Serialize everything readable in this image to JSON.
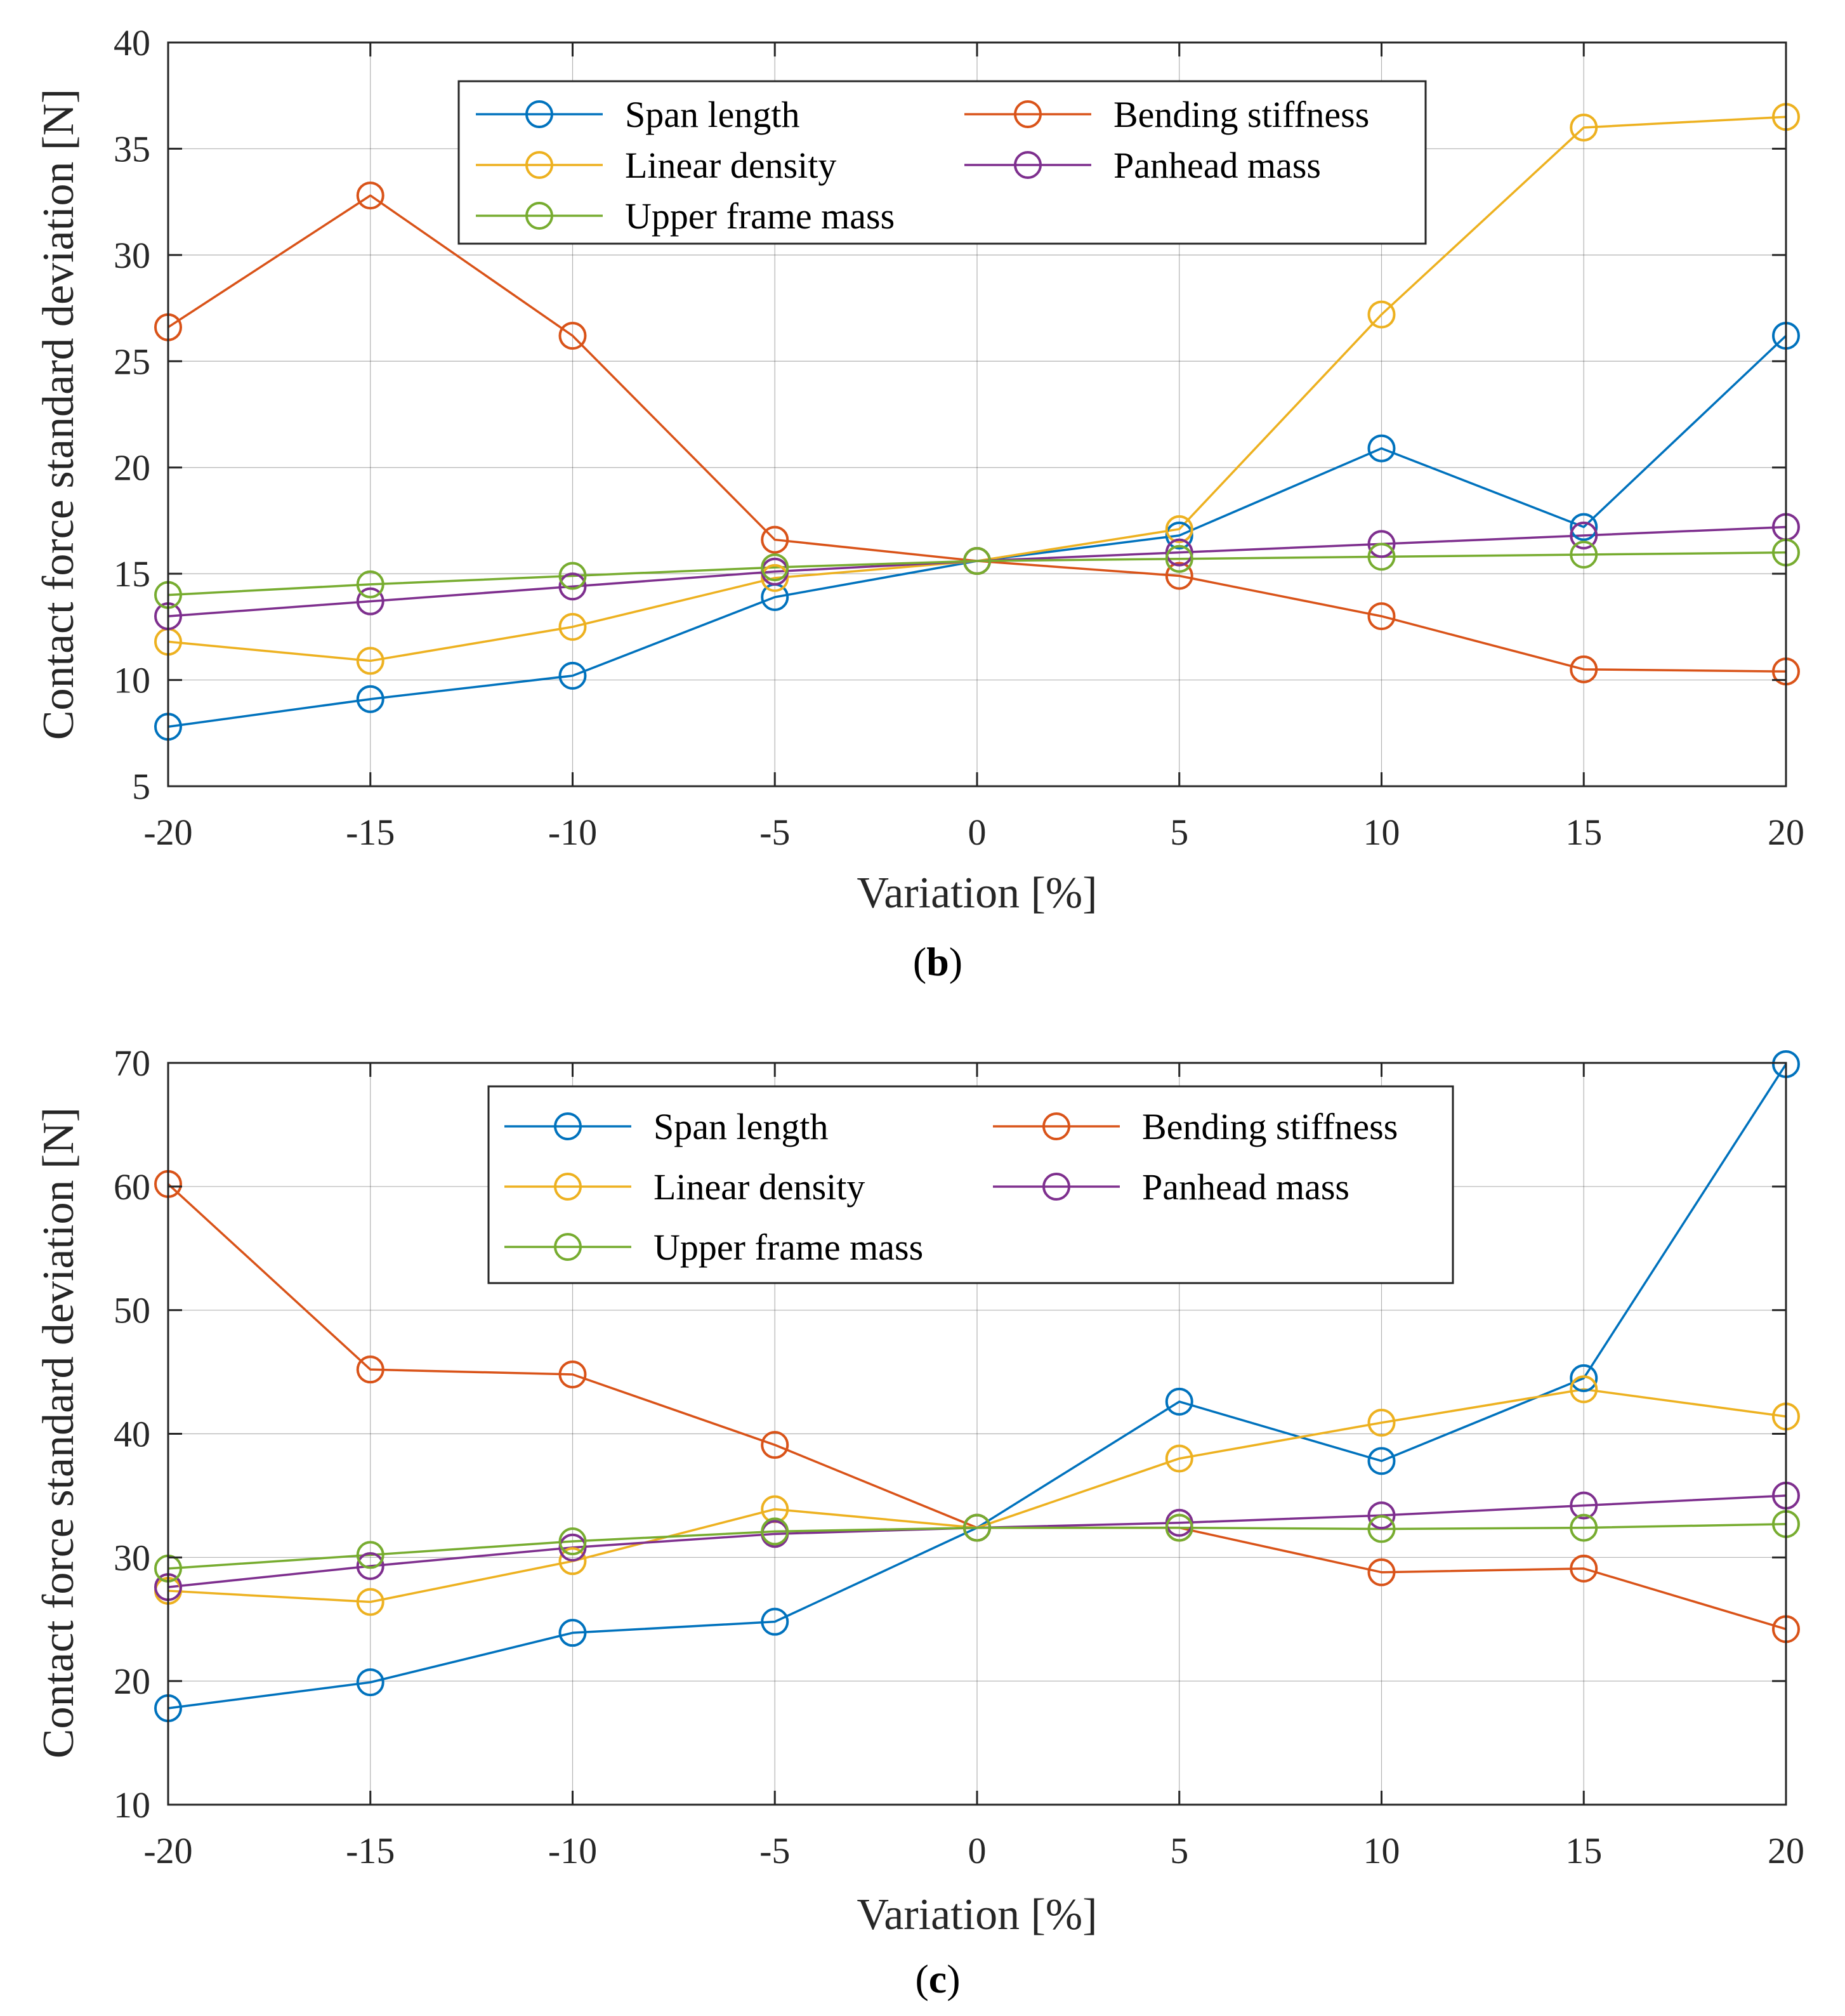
{
  "colors": {
    "span_length": "#0072BD",
    "bending_stiffness": "#D95319",
    "linear_density": "#EDB120",
    "panhead_mass": "#7E2F8E",
    "upper_frame_mass": "#77AC30"
  },
  "chart_data": [
    {
      "id": "b",
      "type": "line",
      "caption": {
        "open": "(",
        "letter": "b",
        "close": ")"
      },
      "xlabel": "Variation [%]",
      "ylabel": "Contact force standard deviation [N]",
      "x": [
        -20,
        -15,
        -10,
        -5,
        0,
        5,
        10,
        15,
        20
      ],
      "xticks": [
        "-20",
        "-15",
        "-10",
        "-5",
        "0",
        "5",
        "10",
        "15",
        "20"
      ],
      "xlim": [
        -20,
        20
      ],
      "ylim": [
        5,
        40
      ],
      "yticks": [
        "5",
        "10",
        "15",
        "20",
        "25",
        "30",
        "35",
        "40"
      ],
      "ytick_values": [
        5,
        10,
        15,
        20,
        25,
        30,
        35,
        40
      ],
      "legend_placement": "top-center",
      "series": [
        {
          "key": "span_length",
          "name": "Span length",
          "values": [
            7.8,
            9.1,
            10.2,
            13.9,
            15.6,
            16.8,
            20.9,
            17.2,
            26.2
          ]
        },
        {
          "key": "bending_stiffness",
          "name": "Bending stiffness",
          "values": [
            26.6,
            32.8,
            26.2,
            16.6,
            15.6,
            14.9,
            13.0,
            10.5,
            10.4
          ]
        },
        {
          "key": "linear_density",
          "name": "Linear density",
          "values": [
            11.8,
            10.9,
            12.5,
            14.8,
            15.6,
            17.1,
            27.2,
            36.0,
            36.5
          ]
        },
        {
          "key": "panhead_mass",
          "name": "Panhead mass",
          "values": [
            13.0,
            13.7,
            14.4,
            15.1,
            15.6,
            16.0,
            16.4,
            16.8,
            17.2
          ]
        },
        {
          "key": "upper_frame_mass",
          "name": "Upper frame mass",
          "values": [
            14.0,
            14.5,
            14.9,
            15.3,
            15.6,
            15.7,
            15.8,
            15.9,
            16.0
          ]
        }
      ]
    },
    {
      "id": "c",
      "type": "line",
      "caption": {
        "open": "(",
        "letter": "c",
        "close": ")"
      },
      "xlabel": "Variation [%]",
      "ylabel": "Contact force standard deviation [N]",
      "x": [
        -20,
        -15,
        -10,
        -5,
        0,
        5,
        10,
        15,
        20
      ],
      "xticks": [
        "-20",
        "-15",
        "-10",
        "-5",
        "0",
        "5",
        "10",
        "15",
        "20"
      ],
      "xlim": [
        -20,
        20
      ],
      "ylim": [
        10,
        70
      ],
      "yticks": [
        "10",
        "20",
        "30",
        "40",
        "50",
        "60",
        "70"
      ],
      "ytick_values": [
        10,
        20,
        30,
        40,
        50,
        60,
        70
      ],
      "legend_placement": "top-center",
      "series": [
        {
          "key": "span_length",
          "name": "Span length",
          "values": [
            17.8,
            19.9,
            23.9,
            24.8,
            32.4,
            42.6,
            37.8,
            44.5,
            69.9
          ]
        },
        {
          "key": "bending_stiffness",
          "name": "Bending stiffness",
          "values": [
            60.2,
            45.2,
            44.8,
            39.1,
            32.4,
            32.4,
            28.8,
            29.1,
            24.2
          ]
        },
        {
          "key": "linear_density",
          "name": "Linear density",
          "values": [
            27.3,
            26.4,
            29.7,
            33.9,
            32.4,
            38.0,
            40.9,
            43.6,
            41.4
          ]
        },
        {
          "key": "panhead_mass",
          "name": "Panhead mass",
          "values": [
            27.6,
            29.3,
            30.8,
            31.9,
            32.4,
            32.8,
            33.4,
            34.2,
            35.0
          ]
        },
        {
          "key": "upper_frame_mass",
          "name": "Upper frame mass",
          "values": [
            29.1,
            30.2,
            31.3,
            32.1,
            32.4,
            32.4,
            32.3,
            32.4,
            32.7
          ]
        }
      ]
    }
  ]
}
